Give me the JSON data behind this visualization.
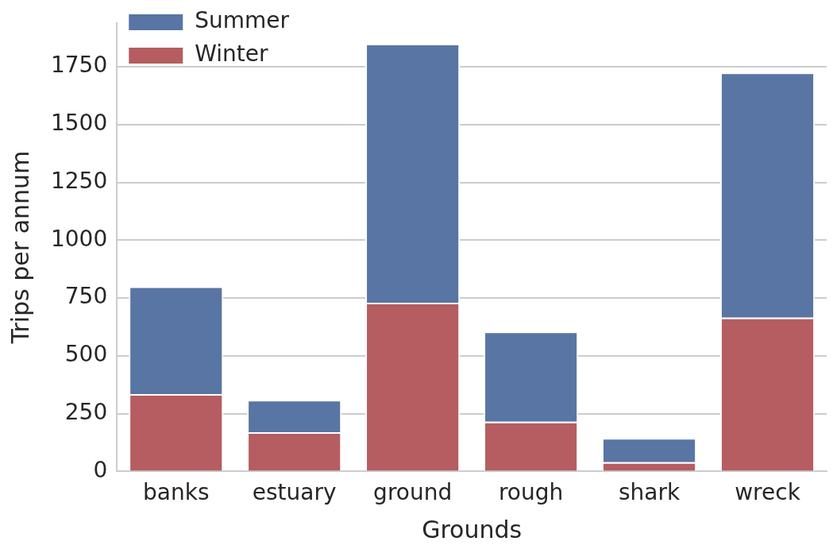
{
  "chart_data": {
    "type": "bar",
    "xlabel": "Grounds",
    "ylabel": "Trips per annum",
    "categories": [
      "banks",
      "estuary",
      "ground",
      "rough",
      "shark",
      "wreck"
    ],
    "stacked": true,
    "series": [
      {
        "name": "Winter",
        "color": "#b55d60",
        "values": [
          335,
          170,
          730,
          215,
          40,
          665
        ]
      },
      {
        "name": "Summer",
        "color": "#5875a4",
        "values": [
          465,
          140,
          1120,
          390,
          105,
          1060
        ]
      }
    ],
    "ylim": [
      0,
      1940
    ],
    "yticks": [
      0,
      250,
      500,
      750,
      1000,
      1250,
      1500,
      1750
    ],
    "grid": "y",
    "legend": "top left"
  }
}
